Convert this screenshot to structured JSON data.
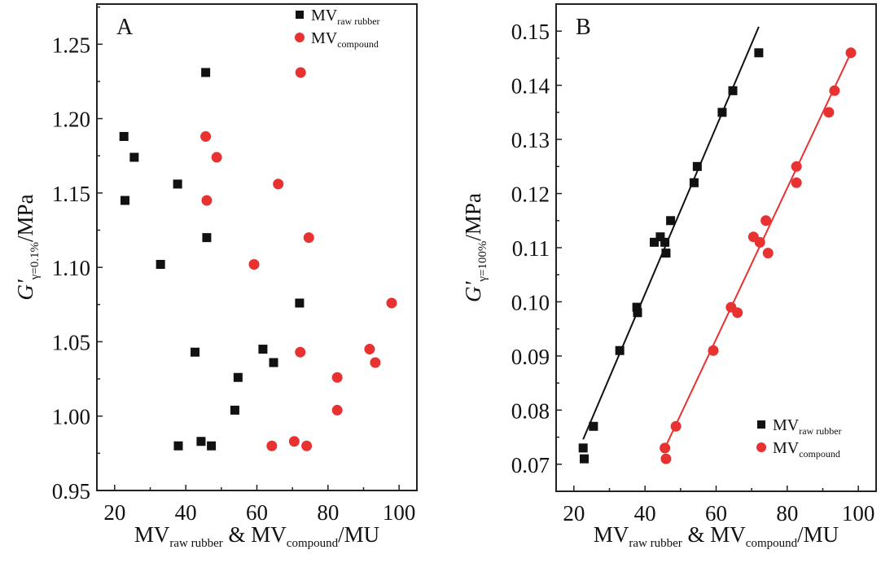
{
  "figure": {
    "colors": {
      "black_series": "#111111",
      "red_series": "#e83232",
      "axis": "#222222"
    }
  },
  "chart_data": [
    {
      "type": "scatter",
      "panel_label": "A",
      "xlabel": {
        "main": "MV",
        "sub1": "raw rubber",
        "mid": " & MV",
        "sub2": "compound",
        "end": "/MU"
      },
      "ylabel": {
        "main": "G'",
        "sub": "γ=0.1%",
        "end": "/MPa"
      },
      "xlim": [
        15,
        105
      ],
      "ylim": [
        0.95,
        1.277
      ],
      "xticks": [
        20,
        40,
        60,
        80,
        100
      ],
      "xtick_labels": [
        "20",
        "40",
        "60",
        "80",
        "100"
      ],
      "yticks": [
        0.95,
        1.0,
        1.05,
        1.1,
        1.15,
        1.2,
        1.25
      ],
      "ytick_labels": [
        "0.95",
        "1.00",
        "1.05",
        "1.10",
        "1.15",
        "1.20",
        "1.25"
      ],
      "legend_position": "top-right",
      "grid": false,
      "series": [
        {
          "name": "MV raw rubber",
          "legend_main": "MV",
          "legend_sub": "raw rubber",
          "marker": "square",
          "color": "#111111",
          "x": [
            45.6,
            22.6,
            25.5,
            37.7,
            22.9,
            45.9,
            32.9,
            72.0,
            42.6,
            61.7,
            64.7,
            54.7,
            53.8,
            37.9,
            44.3,
            47.2
          ],
          "y": [
            1.231,
            1.188,
            1.174,
            1.156,
            1.145,
            1.12,
            1.102,
            1.076,
            1.043,
            1.045,
            1.036,
            1.026,
            1.004,
            0.98,
            0.983,
            0.98
          ]
        },
        {
          "name": "MV compound",
          "legend_main": "MV",
          "legend_sub": "compound",
          "marker": "circle",
          "color": "#e83232",
          "x": [
            72.3,
            45.6,
            48.7,
            66.0,
            45.9,
            74.6,
            59.2,
            97.9,
            72.2,
            91.7,
            93.3,
            82.6,
            82.6,
            64.2,
            70.5,
            74.0
          ],
          "y": [
            1.231,
            1.188,
            1.174,
            1.156,
            1.145,
            1.12,
            1.102,
            1.076,
            1.043,
            1.045,
            1.036,
            1.026,
            1.004,
            0.98,
            0.983,
            0.98
          ]
        }
      ]
    },
    {
      "type": "scatter",
      "panel_label": "B",
      "xlabel": {
        "main": "MV",
        "sub1": "raw rubber",
        "mid": " & MV",
        "sub2": "compound",
        "end": "/MU"
      },
      "ylabel": {
        "main": "G'",
        "sub": "γ=100%",
        "end": "/MPa"
      },
      "xlim": [
        15,
        105
      ],
      "ylim": [
        0.065,
        0.155
      ],
      "xticks": [
        20,
        40,
        60,
        80,
        100
      ],
      "xtick_labels": [
        "20",
        "40",
        "60",
        "80",
        "100"
      ],
      "yticks": [
        0.07,
        0.08,
        0.09,
        0.1,
        0.11,
        0.12,
        0.13,
        0.14,
        0.15
      ],
      "ytick_labels": [
        "0.07",
        "0.08",
        "0.09",
        "0.10",
        "0.11",
        "0.12",
        "0.13",
        "0.14",
        "0.15"
      ],
      "legend_position": "bottom-right",
      "grid": false,
      "series": [
        {
          "name": "MV raw rubber",
          "legend_main": "MV",
          "legend_sub": "raw rubber",
          "marker": "square",
          "color": "#111111",
          "x": [
            22.6,
            22.9,
            25.5,
            32.9,
            37.7,
            37.9,
            42.6,
            44.3,
            45.6,
            45.9,
            47.2,
            53.8,
            54.7,
            61.7,
            64.7,
            72.0
          ],
          "y": [
            0.073,
            0.071,
            0.077,
            0.091,
            0.099,
            0.098,
            0.111,
            0.112,
            0.111,
            0.109,
            0.115,
            0.122,
            0.125,
            0.135,
            0.139,
            0.146
          ],
          "fit_line": {
            "x": [
              22.6,
              72.0
            ],
            "y": [
              0.0746,
              0.1508
            ]
          }
        },
        {
          "name": "MV compound",
          "legend_main": "MV",
          "legend_sub": "compound",
          "marker": "circle",
          "color": "#e83232",
          "x": [
            45.6,
            45.9,
            48.7,
            59.2,
            64.2,
            66.0,
            70.5,
            72.3,
            74.0,
            74.6,
            82.6,
            82.6,
            91.7,
            93.3,
            97.9
          ],
          "y": [
            0.073,
            0.071,
            0.077,
            0.091,
            0.099,
            0.098,
            0.112,
            0.111,
            0.115,
            0.109,
            0.125,
            0.122,
            0.135,
            0.139,
            0.146
          ],
          "fit_line": {
            "x": [
              45.6,
              97.9
            ],
            "y": [
              0.073,
              0.146
            ]
          }
        }
      ]
    }
  ]
}
